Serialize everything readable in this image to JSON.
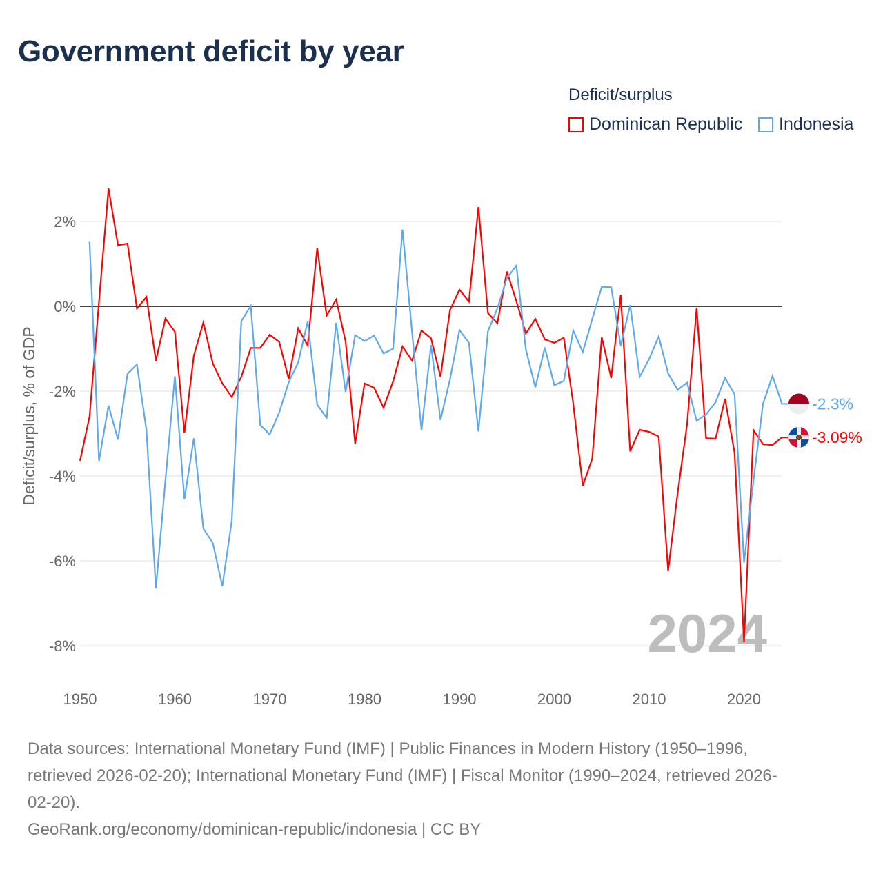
{
  "chart_data": {
    "type": "line",
    "title": "Government deficit by year",
    "ylabel": "Deficit/surplus, % of GDP",
    "xlabel": "",
    "ylim": [
      -8.9,
      2.9
    ],
    "xlim": [
      1950,
      2024
    ],
    "grid": true,
    "legend_title": "Deficit/surplus",
    "legend_position": "top-right",
    "year_watermark": "2024",
    "y_ticks": [
      {
        "value": 2,
        "label": "2%"
      },
      {
        "value": 0,
        "label": "0%"
      },
      {
        "value": -2,
        "label": "-2%"
      },
      {
        "value": -4,
        "label": "-4%"
      },
      {
        "value": -6,
        "label": "-6%"
      },
      {
        "value": -8,
        "label": "-8%"
      }
    ],
    "x_ticks": [
      {
        "value": 1950,
        "label": "1950"
      },
      {
        "value": 1960,
        "label": "1960"
      },
      {
        "value": 1970,
        "label": "1970"
      },
      {
        "value": 1980,
        "label": "1980"
      },
      {
        "value": 1990,
        "label": "1990"
      },
      {
        "value": 2000,
        "label": "2000"
      },
      {
        "value": 2010,
        "label": "2010"
      },
      {
        "value": 2020,
        "label": "2020"
      }
    ],
    "series": [
      {
        "name": "Dominican Republic",
        "color": "#ff0000",
        "end_label": "-3.09%",
        "start_year": 1950,
        "values": [
          -3.64,
          -2.6,
          0.1,
          2.78,
          1.44,
          1.48,
          -0.05,
          0.22,
          -1.28,
          -0.29,
          -0.6,
          -2.98,
          -1.16,
          -0.38,
          -1.35,
          -1.82,
          -2.14,
          -1.66,
          -0.98,
          -0.98,
          -0.67,
          -0.84,
          -1.71,
          -0.52,
          -0.92,
          1.37,
          -0.22,
          0.16,
          -0.83,
          -3.24,
          -1.82,
          -1.92,
          -2.39,
          -1.77,
          -0.95,
          -1.28,
          -0.57,
          -0.75,
          -1.66,
          -0.09,
          0.39,
          0.11,
          2.34,
          -0.16,
          -0.4,
          0.82,
          0.12,
          -0.64,
          -0.3,
          -0.78,
          -0.86,
          -0.74,
          -2.3,
          -4.23,
          -3.59,
          -0.73,
          -1.69,
          0.27,
          -3.42,
          -2.91,
          -2.96,
          -3.07,
          -6.24,
          -4.4,
          -2.78,
          -0.04,
          -3.11,
          -3.12,
          -2.18,
          -3.45,
          -7.92,
          -2.92,
          -3.25,
          -3.27,
          -3.09
        ]
      },
      {
        "name": "Indonesia",
        "color": "#5ea8ee",
        "end_label": "-2.3%",
        "start_year": 1951,
        "values": [
          1.52,
          -3.64,
          -2.34,
          -3.14,
          -1.59,
          -1.37,
          -2.92,
          -6.65,
          -4.1,
          -1.65,
          -4.55,
          -3.11,
          -5.24,
          -5.58,
          -6.6,
          -5.05,
          -0.35,
          0.01,
          -2.8,
          -3.02,
          -2.5,
          -1.79,
          -1.32,
          -0.36,
          -2.32,
          -2.63,
          -0.39,
          -2.02,
          -0.68,
          -0.82,
          -0.69,
          -1.11,
          -1.0,
          1.81,
          -0.6,
          -2.92,
          -0.91,
          -2.68,
          -1.72,
          -0.56,
          -0.86,
          -2.95,
          -0.59,
          -0.05,
          0.66,
          0.96,
          -1.02,
          -1.91,
          -0.97,
          -1.86,
          -1.76,
          -0.57,
          -1.08,
          -0.3,
          0.46,
          0.45,
          -0.93,
          0.03,
          -1.66,
          -1.24,
          -0.71,
          -1.58,
          -1.97,
          -1.8,
          -2.7,
          -2.55,
          -2.26,
          -1.69,
          -2.07,
          -6.04,
          -4.1,
          -2.3,
          -1.64,
          -2.3
        ]
      }
    ]
  },
  "footer": {
    "sources_line1": "Data sources: International Monetary Fund (IMF) | Public Finances in Modern History (1950–1996,",
    "sources_line2": "retrieved 2026-02-20); International Monetary Fund (IMF) | Fiscal Monitor (1990–2024, retrieved 2026-",
    "sources_line3": "02-20).",
    "credit": "GeoRank.org/economy/dominican-republic/indonesia | CC BY"
  }
}
